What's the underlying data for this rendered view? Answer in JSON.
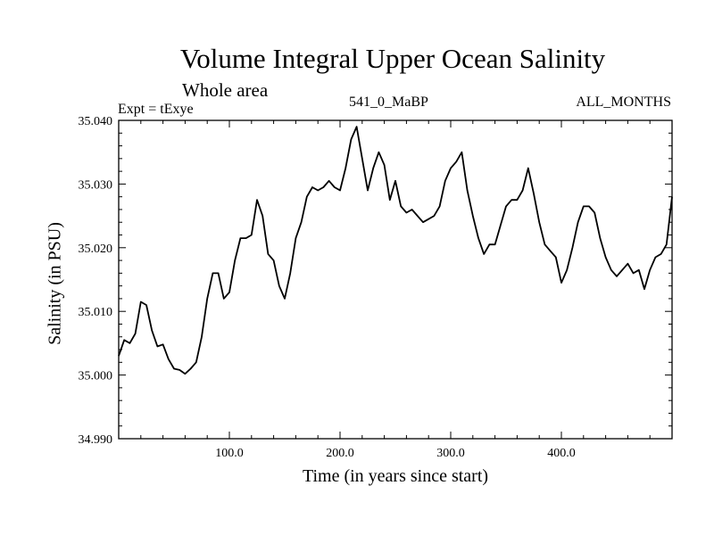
{
  "chart_data": {
    "type": "line",
    "title": "Volume Integral Upper Ocean Salinity",
    "subtitle": "Whole area",
    "annotations": {
      "left": "Expt = tExye",
      "center": "541_0_MaBP",
      "right": "ALL_MONTHS"
    },
    "xlabel": "Time (in years since start)",
    "ylabel": "Salinity (in PSU)",
    "xlim": [
      0,
      500
    ],
    "ylim": [
      34.99,
      35.04
    ],
    "xticks": [
      100,
      200,
      300,
      400
    ],
    "xtick_labels": [
      "100.0",
      "200.0",
      "300.0",
      "400.0"
    ],
    "yticks": [
      34.99,
      35.0,
      35.01,
      35.02,
      35.03,
      35.04
    ],
    "ytick_labels": [
      "34.990",
      "35.000",
      "35.010",
      "35.020",
      "35.030",
      "35.040"
    ],
    "grid": false,
    "series": [
      {
        "color": "#000000",
        "points": [
          [
            0,
            35.003
          ],
          [
            5,
            35.0055
          ],
          [
            10,
            35.005
          ],
          [
            15,
            35.0065
          ],
          [
            20,
            35.0115
          ],
          [
            25,
            35.011
          ],
          [
            30,
            35.007
          ],
          [
            35,
            35.0045
          ],
          [
            40,
            35.0048
          ],
          [
            45,
            35.0025
          ],
          [
            50,
            35.001
          ],
          [
            55,
            35.0008
          ],
          [
            60,
            35.0002
          ],
          [
            65,
            35.001
          ],
          [
            70,
            35.002
          ],
          [
            75,
            35.006
          ],
          [
            80,
            35.012
          ],
          [
            85,
            35.016
          ],
          [
            90,
            35.016
          ],
          [
            95,
            35.012
          ],
          [
            100,
            35.013
          ],
          [
            105,
            35.018
          ],
          [
            110,
            35.0215
          ],
          [
            115,
            35.0215
          ],
          [
            120,
            35.022
          ],
          [
            125,
            35.0275
          ],
          [
            130,
            35.025
          ],
          [
            135,
            35.019
          ],
          [
            140,
            35.018
          ],
          [
            145,
            35.014
          ],
          [
            150,
            35.012
          ],
          [
            155,
            35.016
          ],
          [
            160,
            35.0215
          ],
          [
            165,
            35.024
          ],
          [
            170,
            35.028
          ],
          [
            175,
            35.0295
          ],
          [
            180,
            35.029
          ],
          [
            185,
            35.0295
          ],
          [
            190,
            35.0305
          ],
          [
            195,
            35.0295
          ],
          [
            200,
            35.029
          ],
          [
            205,
            35.0325
          ],
          [
            210,
            35.037
          ],
          [
            215,
            35.039
          ],
          [
            220,
            35.034
          ],
          [
            225,
            35.029
          ],
          [
            230,
            35.0325
          ],
          [
            235,
            35.035
          ],
          [
            240,
            35.033
          ],
          [
            245,
            35.0275
          ],
          [
            250,
            35.0305
          ],
          [
            255,
            35.0265
          ],
          [
            260,
            35.0255
          ],
          [
            265,
            35.026
          ],
          [
            270,
            35.025
          ],
          [
            275,
            35.024
          ],
          [
            280,
            35.0245
          ],
          [
            285,
            35.025
          ],
          [
            290,
            35.0265
          ],
          [
            295,
            35.0305
          ],
          [
            300,
            35.0325
          ],
          [
            305,
            35.0335
          ],
          [
            310,
            35.035
          ],
          [
            315,
            35.029
          ],
          [
            320,
            35.025
          ],
          [
            325,
            35.0215
          ],
          [
            330,
            35.019
          ],
          [
            335,
            35.0205
          ],
          [
            340,
            35.0205
          ],
          [
            345,
            35.0235
          ],
          [
            350,
            35.0265
          ],
          [
            355,
            35.0275
          ],
          [
            360,
            35.0275
          ],
          [
            365,
            35.029
          ],
          [
            370,
            35.0325
          ],
          [
            375,
            35.0285
          ],
          [
            380,
            35.024
          ],
          [
            385,
            35.0205
          ],
          [
            390,
            35.0195
          ],
          [
            395,
            35.0185
          ],
          [
            400,
            35.0145
          ],
          [
            405,
            35.0165
          ],
          [
            410,
            35.02
          ],
          [
            415,
            35.024
          ],
          [
            420,
            35.0265
          ],
          [
            425,
            35.0265
          ],
          [
            430,
            35.0255
          ],
          [
            435,
            35.0215
          ],
          [
            440,
            35.0185
          ],
          [
            445,
            35.0165
          ],
          [
            450,
            35.0155
          ],
          [
            455,
            35.0165
          ],
          [
            460,
            35.0175
          ],
          [
            465,
            35.016
          ],
          [
            470,
            35.0165
          ],
          [
            475,
            35.0135
          ],
          [
            480,
            35.0165
          ],
          [
            485,
            35.0185
          ],
          [
            490,
            35.019
          ],
          [
            495,
            35.0205
          ],
          [
            500,
            35.028
          ]
        ]
      }
    ]
  }
}
